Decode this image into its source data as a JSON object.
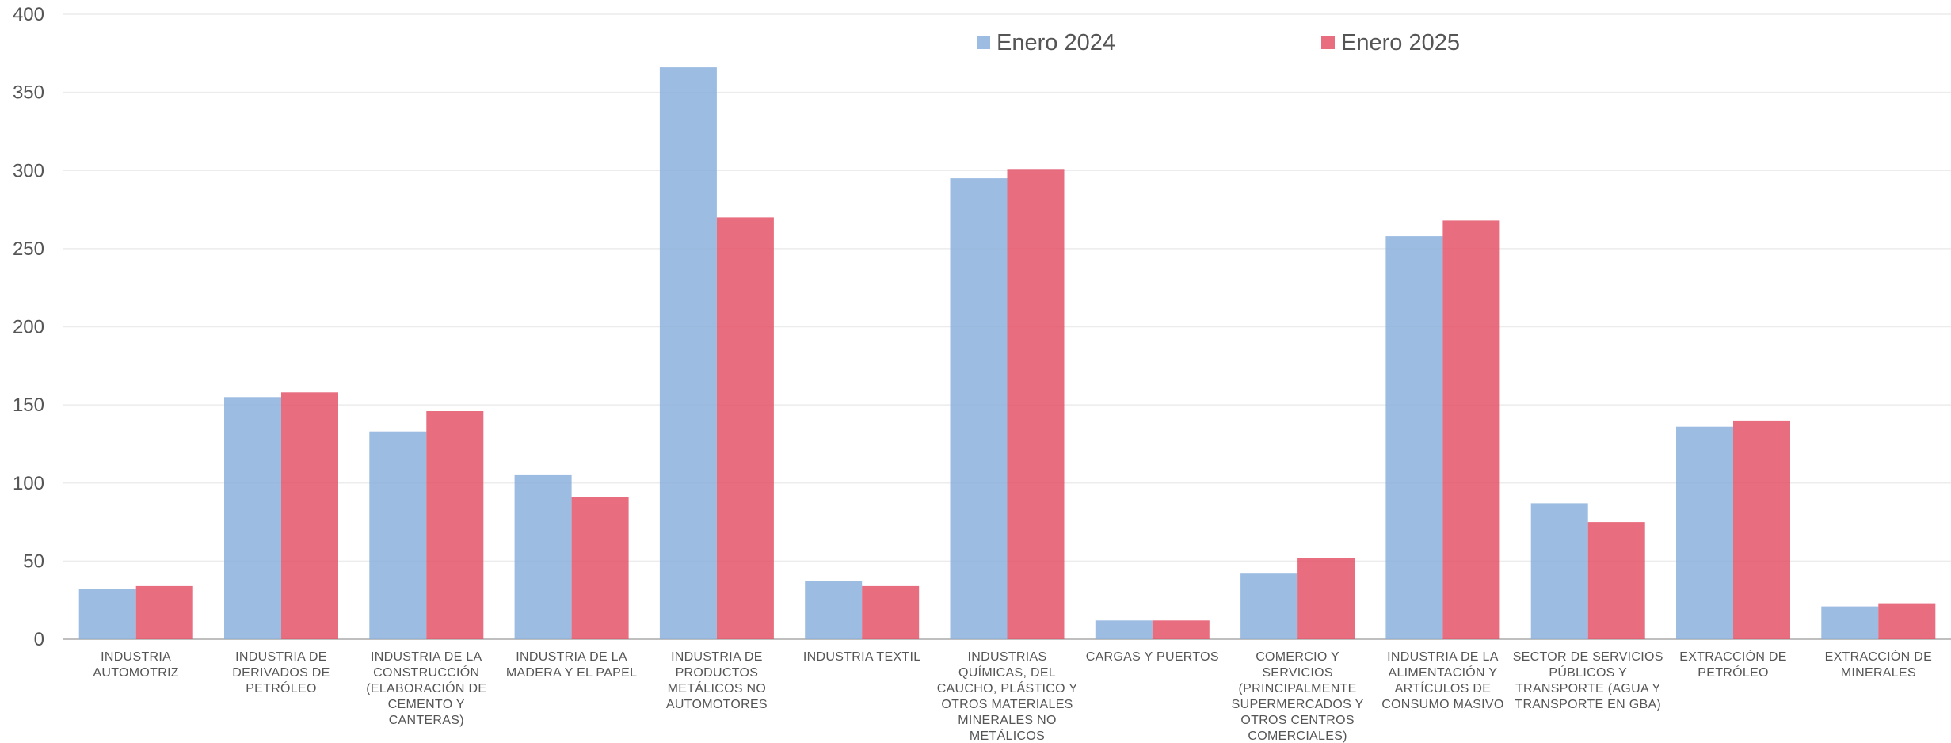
{
  "chart_data": {
    "type": "bar",
    "title": "",
    "xlabel": "",
    "ylabel": "",
    "ylim": [
      0,
      400
    ],
    "yticks": [
      0,
      50,
      100,
      150,
      200,
      250,
      300,
      350,
      400
    ],
    "grid": true,
    "legend_position": "top-center",
    "categories": [
      [
        "INDUSTRIA",
        "AUTOMOTRIZ"
      ],
      [
        "INDUSTRIA  DE",
        "DERIVADOS  DE",
        "PETRÓLEO"
      ],
      [
        "INDUSTRIA  DE LA",
        "CONSTRUCCIÓN",
        "(ELABORACIÓN  DE",
        "CEMENTO Y",
        "CANTERAS)"
      ],
      [
        "INDUSTRIA  DE LA",
        "MADERA Y EL PAPEL"
      ],
      [
        "INDUSTRIA  DE",
        "PRODUCTOS",
        "METÁLICOS NO",
        "AUTOMOTORES"
      ],
      [
        "INDUSTRIA  TEXTIL"
      ],
      [
        "INDUSTRIAS",
        "QUÍMICAS, DEL",
        "CAUCHO, PLÁSTICO  Y",
        "OTROS MATERIALES",
        "MINERALES  NO",
        "METÁLICOS"
      ],
      [
        "CARGAS Y PUERTOS"
      ],
      [
        "COMERCIO  Y",
        "SERVICIOS",
        "(PRINCIPALMENTE",
        "SUPERMERCADOS  Y",
        "OTROS CENTROS",
        "COMERCIALES)"
      ],
      [
        "INDUSTRIA  DE LA",
        "ALIMENTACIÓN  Y",
        "ARTÍCULOS  DE",
        "CONSUMO MASIVO"
      ],
      [
        "SECTOR DE SERVICIOS",
        "PÚBLICOS  Y",
        "TRANSPORTE  (AGUA Y",
        "TRANSPORTE  EN GBA)"
      ],
      [
        "EXTRACCIÓN  DE",
        "PETRÓLEO"
      ],
      [
        "EXTRACCIÓN  DE",
        "MINERALES"
      ]
    ],
    "series": [
      {
        "name": "Enero 2024",
        "color": "#8cb0dc",
        "values": [
          32,
          155,
          133,
          105,
          366,
          37,
          295,
          12,
          42,
          258,
          87,
          136,
          21
        ]
      },
      {
        "name": "Enero 2025",
        "color": "#e45468",
        "values": [
          34,
          158,
          146,
          91,
          270,
          34,
          301,
          12,
          52,
          268,
          75,
          140,
          23
        ]
      }
    ]
  }
}
